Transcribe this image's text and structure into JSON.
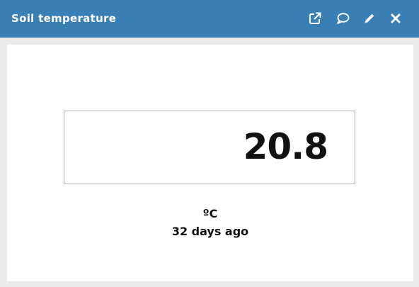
{
  "widget": {
    "title": "Soil temperature",
    "toolbar": {
      "open_icon": "external-link-icon",
      "comment_icon": "speech-bubble-icon",
      "edit_icon": "pencil-icon",
      "close_icon": "close-icon"
    },
    "value": "20.8",
    "unit": "ºC",
    "last_updated": "32 days ago"
  },
  "colors": {
    "header_background": "#3a7fb4",
    "header_text": "#ffffff",
    "panel_background": "#ffffff",
    "frame_background": "#eaeaea",
    "value_text": "#111111",
    "value_box_border": "#a9b3bd"
  }
}
